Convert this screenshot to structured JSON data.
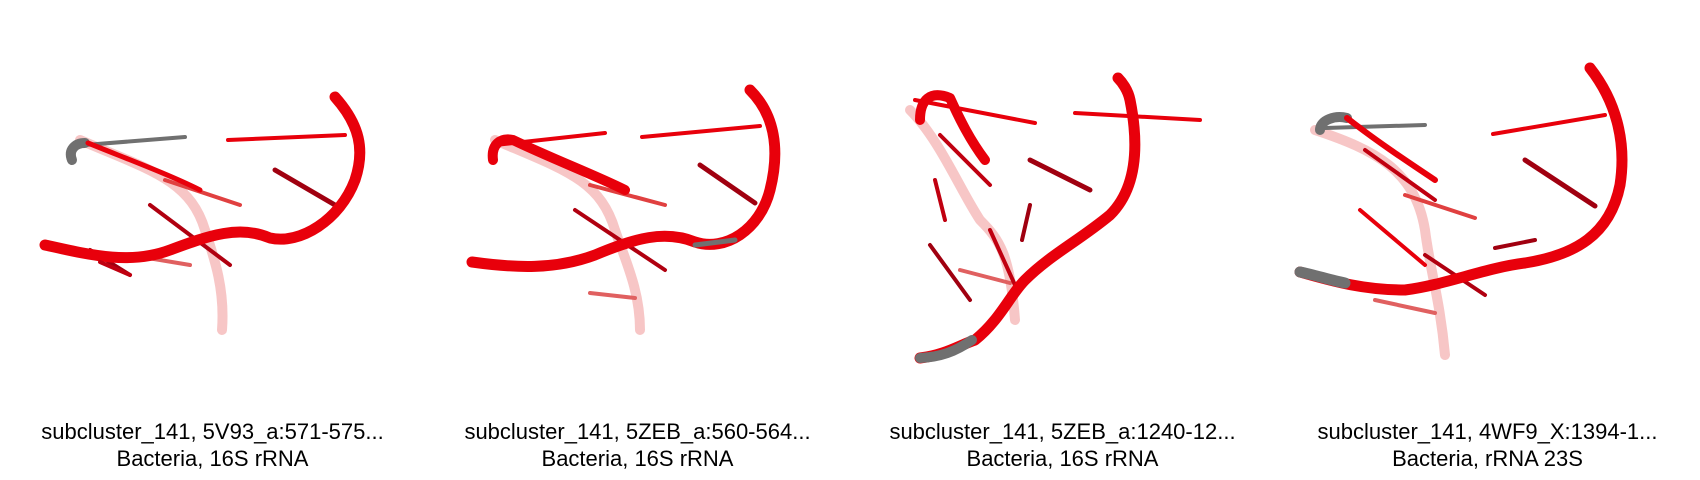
{
  "panels": [
    {
      "line1": "subcluster_141, 5V93_a:571-575...",
      "line2": "Bacteria, 16S rRNA"
    },
    {
      "line1": "subcluster_141, 5ZEB_a:560-564...",
      "line2": "Bacteria, 16S rRNA"
    },
    {
      "line1": "subcluster_141, 5ZEB_a:1240-12...",
      "line2": "Bacteria, 16S rRNA"
    },
    {
      "line1": "subcluster_141, 4WF9_X:1394-1...",
      "line2": "Bacteria, rRNA 23S"
    }
  ],
  "colors": {
    "backbone": "#e8000b",
    "backbone_faded": "#f08a8a",
    "grey_segment": "#707070"
  }
}
